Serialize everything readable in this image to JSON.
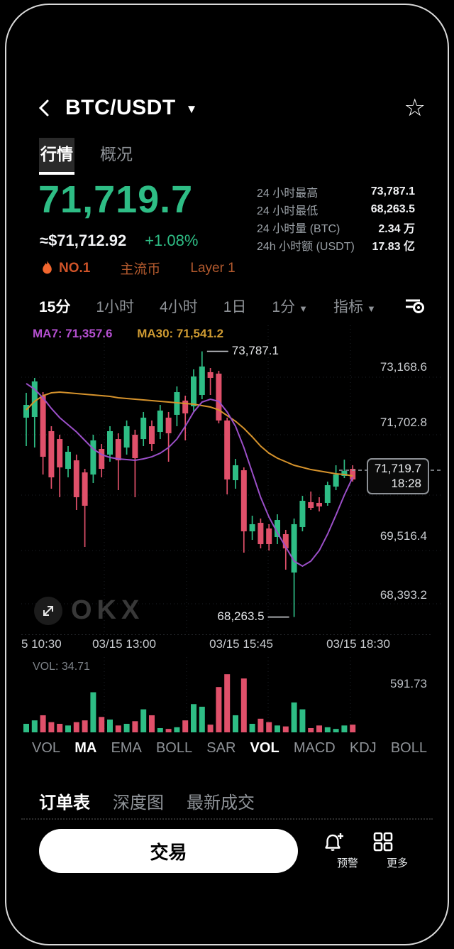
{
  "header": {
    "pair": "BTC/USDT"
  },
  "tabs": [
    {
      "label": "行情",
      "active": true
    },
    {
      "label": "概况",
      "active": false
    }
  ],
  "price": {
    "last": "71,719.7",
    "fiat": "≈$71,712.92",
    "change": "+1.08%"
  },
  "stats": [
    {
      "label": "24 小时最高",
      "value": "73,787.1"
    },
    {
      "label": "24 小时最低",
      "value": "68,263.5"
    },
    {
      "label": "24 小时量 (BTC)",
      "value": "2.34 万"
    },
    {
      "label": "24h 小时额 (USDT)",
      "value": "17.83 亿"
    }
  ],
  "badges": {
    "rank": "NO.1",
    "tags": [
      "主流币",
      "Layer 1"
    ]
  },
  "timeframes": [
    {
      "label": "15分",
      "active": true
    },
    {
      "label": "1小时",
      "active": false
    },
    {
      "label": "4小时",
      "active": false
    },
    {
      "label": "1日",
      "active": false
    },
    {
      "label": "1分",
      "active": false,
      "caret": true
    },
    {
      "label": "指标",
      "active": false,
      "caret": true
    }
  ],
  "watermark": {
    "logo_text": "OKX"
  },
  "chart_data": {
    "type": "candlestick",
    "symbol": "BTC/USDT",
    "interval": "15分",
    "legend": {
      "ma7": "MA7: 71,357.6",
      "ma30": "MA30: 71,541.2"
    },
    "y_domain": [
      68096,
      74150
    ],
    "y_ticks": [
      {
        "label": "73,168.6"
      },
      {
        "label": "71,702.8"
      },
      {
        "label": "69,516.4"
      },
      {
        "label": "68,393.2"
      }
    ],
    "x_ticks": [
      "5 10:30",
      "03/15 13:00",
      "03/15 15:45",
      "03/15 18:30"
    ],
    "price_marker": {
      "price": "71,719.7",
      "time": "18:28"
    },
    "annotations": {
      "high": {
        "text": "73,787.1",
        "index": 21
      },
      "low": {
        "text": "68,263.5",
        "index": 32
      }
    },
    "candles": [
      [
        72408,
        72924,
        71817,
        72673
      ],
      [
        72422,
        73235,
        71788,
        73161
      ],
      [
        72865,
        72939,
        71226,
        71595
      ],
      [
        72127,
        72230,
        70931,
        71167
      ],
      [
        71964,
        72053,
        70754,
        71374
      ],
      [
        71344,
        71817,
        71167,
        71699
      ],
      [
        71521,
        71640,
        70488,
        70754
      ],
      [
        71270,
        71344,
        69720,
        70577
      ],
      [
        71226,
        72053,
        71049,
        71935
      ],
      [
        71758,
        71861,
        71167,
        71344
      ],
      [
        71640,
        72230,
        71492,
        72127
      ],
      [
        71964,
        72083,
        70901,
        71521
      ],
      [
        71787,
        72349,
        71640,
        72230
      ],
      [
        72053,
        72157,
        70754,
        71566
      ],
      [
        71964,
        72526,
        71817,
        72408
      ],
      [
        72230,
        72349,
        71714,
        71861
      ],
      [
        72112,
        72673,
        71964,
        72555
      ],
      [
        72408,
        72526,
        71492,
        72083
      ],
      [
        72467,
        73057,
        72230,
        72939
      ],
      [
        72762,
        72865,
        71935,
        72496
      ],
      [
        72644,
        73412,
        72526,
        73264
      ],
      [
        72880,
        73787.1,
        72792,
        73471
      ],
      [
        73353,
        73441,
        72880,
        73235
      ],
      [
        73323,
        73382,
        72290,
        72349
      ],
      [
        72349,
        72408,
        70813,
        71123
      ],
      [
        71108,
        71551,
        70931,
        71418
      ],
      [
        71315,
        71374,
        69602,
        70045
      ],
      [
        70045,
        70370,
        69868,
        70193
      ],
      [
        70222,
        70311,
        69691,
        69779
      ],
      [
        70104,
        70193,
        69646,
        69779
      ],
      [
        69927,
        70399,
        69779,
        70281
      ],
      [
        69986,
        70075,
        69248,
        69691
      ],
      [
        69189,
        70311,
        68263.5,
        70193
      ],
      [
        70134,
        70783,
        70045,
        70680
      ],
      [
        70651,
        70872,
        70488,
        70532
      ],
      [
        70636,
        70754,
        70459,
        70562
      ],
      [
        70636,
        71078,
        70577,
        71004
      ],
      [
        70975,
        71418,
        70901,
        71226
      ],
      [
        71197,
        71536,
        71152,
        71300
      ],
      [
        71344,
        71418,
        71078,
        71123
      ]
    ],
    "ma7": [
      73117,
      72998,
      72821,
      72600,
      72408,
      72260,
      72112,
      71935,
      71758,
      71640,
      71581,
      71551,
      71537,
      71522,
      71551,
      71595,
      71669,
      71787,
      71964,
      72230,
      72526,
      72732,
      72791,
      72747,
      72526,
      72230,
      71787,
      71270,
      70754,
      70341,
      70016,
      69720,
      69425,
      69322,
      69425,
      69646,
      69986,
      70384,
      70798,
      71167
    ],
    "ma30": [
      72570,
      72747,
      72865,
      72924,
      72939,
      72924,
      72909,
      72895,
      72880,
      72865,
      72850,
      72821,
      72806,
      72791,
      72777,
      72762,
      72747,
      72732,
      72718,
      72703,
      72688,
      72659,
      72629,
      72570,
      72452,
      72334,
      72186,
      72009,
      71817,
      71669,
      71566,
      71492,
      71418,
      71374,
      71329,
      71300,
      71270,
      71241,
      71226,
      71197
    ],
    "volume": {
      "legend": "VOL: 34.71",
      "max_label": "591.73",
      "values": [
        82,
        115,
        164,
        98,
        82,
        66,
        98,
        115,
        385,
        148,
        123,
        66,
        82,
        107,
        221,
        164,
        41,
        33,
        49,
        115,
        271,
        246,
        74,
        435,
        558,
        164,
        517,
        82,
        131,
        98,
        66,
        57,
        287,
        221,
        41,
        66,
        49,
        33,
        66,
        74
      ]
    },
    "colors": {
      "up": "#2ebd85",
      "down": "#e0506a",
      "ma7": "#9b4fc8",
      "ma30": "#d6932c"
    }
  },
  "indicator_tabs": [
    {
      "label": "VOL",
      "active": false
    },
    {
      "label": "MA",
      "active": true
    },
    {
      "label": "EMA",
      "active": false
    },
    {
      "label": "BOLL",
      "active": false
    },
    {
      "label": "SAR",
      "active": false
    },
    {
      "label": "VOL",
      "active": true
    },
    {
      "label": "MACD",
      "active": false
    },
    {
      "label": "KDJ",
      "active": false
    },
    {
      "label": "BOLL",
      "active": false
    }
  ],
  "bottom_tabs": [
    {
      "label": "订单表",
      "active": true
    },
    {
      "label": "深度图",
      "active": false
    },
    {
      "label": "最新成交",
      "active": false
    }
  ],
  "footer": {
    "trade_label": "交易",
    "alert_label": "预警",
    "more_label": "更多"
  }
}
